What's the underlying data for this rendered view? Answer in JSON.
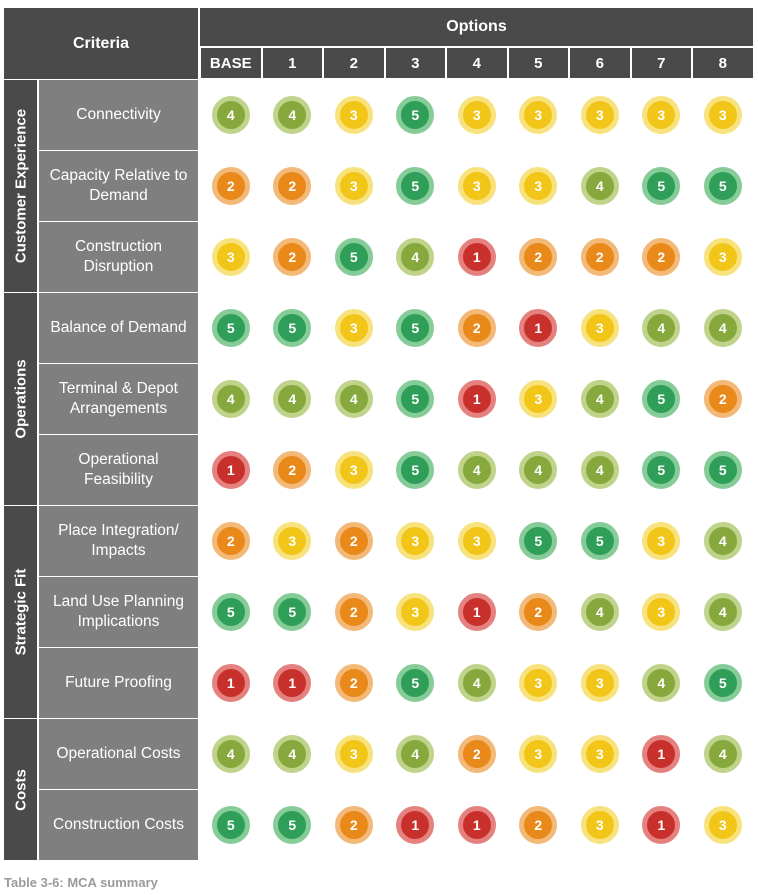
{
  "table": {
    "criteria_header": "Criteria",
    "options_header": "Options",
    "options": [
      "BASE",
      "1",
      "2",
      "3",
      "4",
      "5",
      "6",
      "7",
      "8"
    ],
    "groups": [
      {
        "label": "Customer Experience",
        "rows": [
          {
            "criterion": "Connectivity",
            "scores": [
              4,
              4,
              3,
              5,
              3,
              3,
              3,
              3,
              3
            ]
          },
          {
            "criterion": "Capacity Relative to Demand",
            "scores": [
              2,
              2,
              3,
              5,
              3,
              3,
              4,
              5,
              5
            ]
          },
          {
            "criterion": "Construction Disruption",
            "scores": [
              3,
              2,
              5,
              4,
              1,
              2,
              2,
              2,
              3
            ]
          }
        ]
      },
      {
        "label": "Operations",
        "rows": [
          {
            "criterion": "Balance of Demand",
            "scores": [
              5,
              5,
              3,
              5,
              2,
              1,
              3,
              4,
              4
            ]
          },
          {
            "criterion": "Terminal & Depot Arrangements",
            "scores": [
              4,
              4,
              4,
              5,
              1,
              3,
              4,
              5,
              2
            ]
          },
          {
            "criterion": "Operational Feasibility",
            "scores": [
              1,
              2,
              3,
              5,
              4,
              4,
              4,
              5,
              5
            ]
          }
        ]
      },
      {
        "label": "Strategic Fit",
        "rows": [
          {
            "criterion": "Place Integration/ Impacts",
            "scores": [
              2,
              3,
              2,
              3,
              3,
              5,
              5,
              3,
              4
            ]
          },
          {
            "criterion": "Land Use Planning Implications",
            "scores": [
              5,
              5,
              2,
              3,
              1,
              2,
              4,
              3,
              4
            ]
          },
          {
            "criterion": "Future Proofing",
            "scores": [
              1,
              1,
              2,
              5,
              4,
              3,
              3,
              4,
              5
            ]
          }
        ]
      },
      {
        "label": "Costs",
        "rows": [
          {
            "criterion": "Operational Costs",
            "scores": [
              4,
              4,
              3,
              4,
              2,
              3,
              3,
              1,
              4
            ]
          },
          {
            "criterion": "Construction Costs",
            "scores": [
              5,
              5,
              2,
              1,
              1,
              2,
              3,
              1,
              3
            ]
          }
        ]
      }
    ],
    "score_colors": {
      "1": {
        "fill": "#c8302c",
        "ring": "#e5827f"
      },
      "2": {
        "fill": "#e8891a",
        "ring": "#f3b978"
      },
      "3": {
        "fill": "#f2c618",
        "ring": "#f8e27e"
      },
      "4": {
        "fill": "#86a83c",
        "ring": "#bfd38a"
      },
      "5": {
        "fill": "#2f9e58",
        "ring": "#86cc98"
      }
    }
  },
  "caption": "Table 3-6: MCA summary"
}
